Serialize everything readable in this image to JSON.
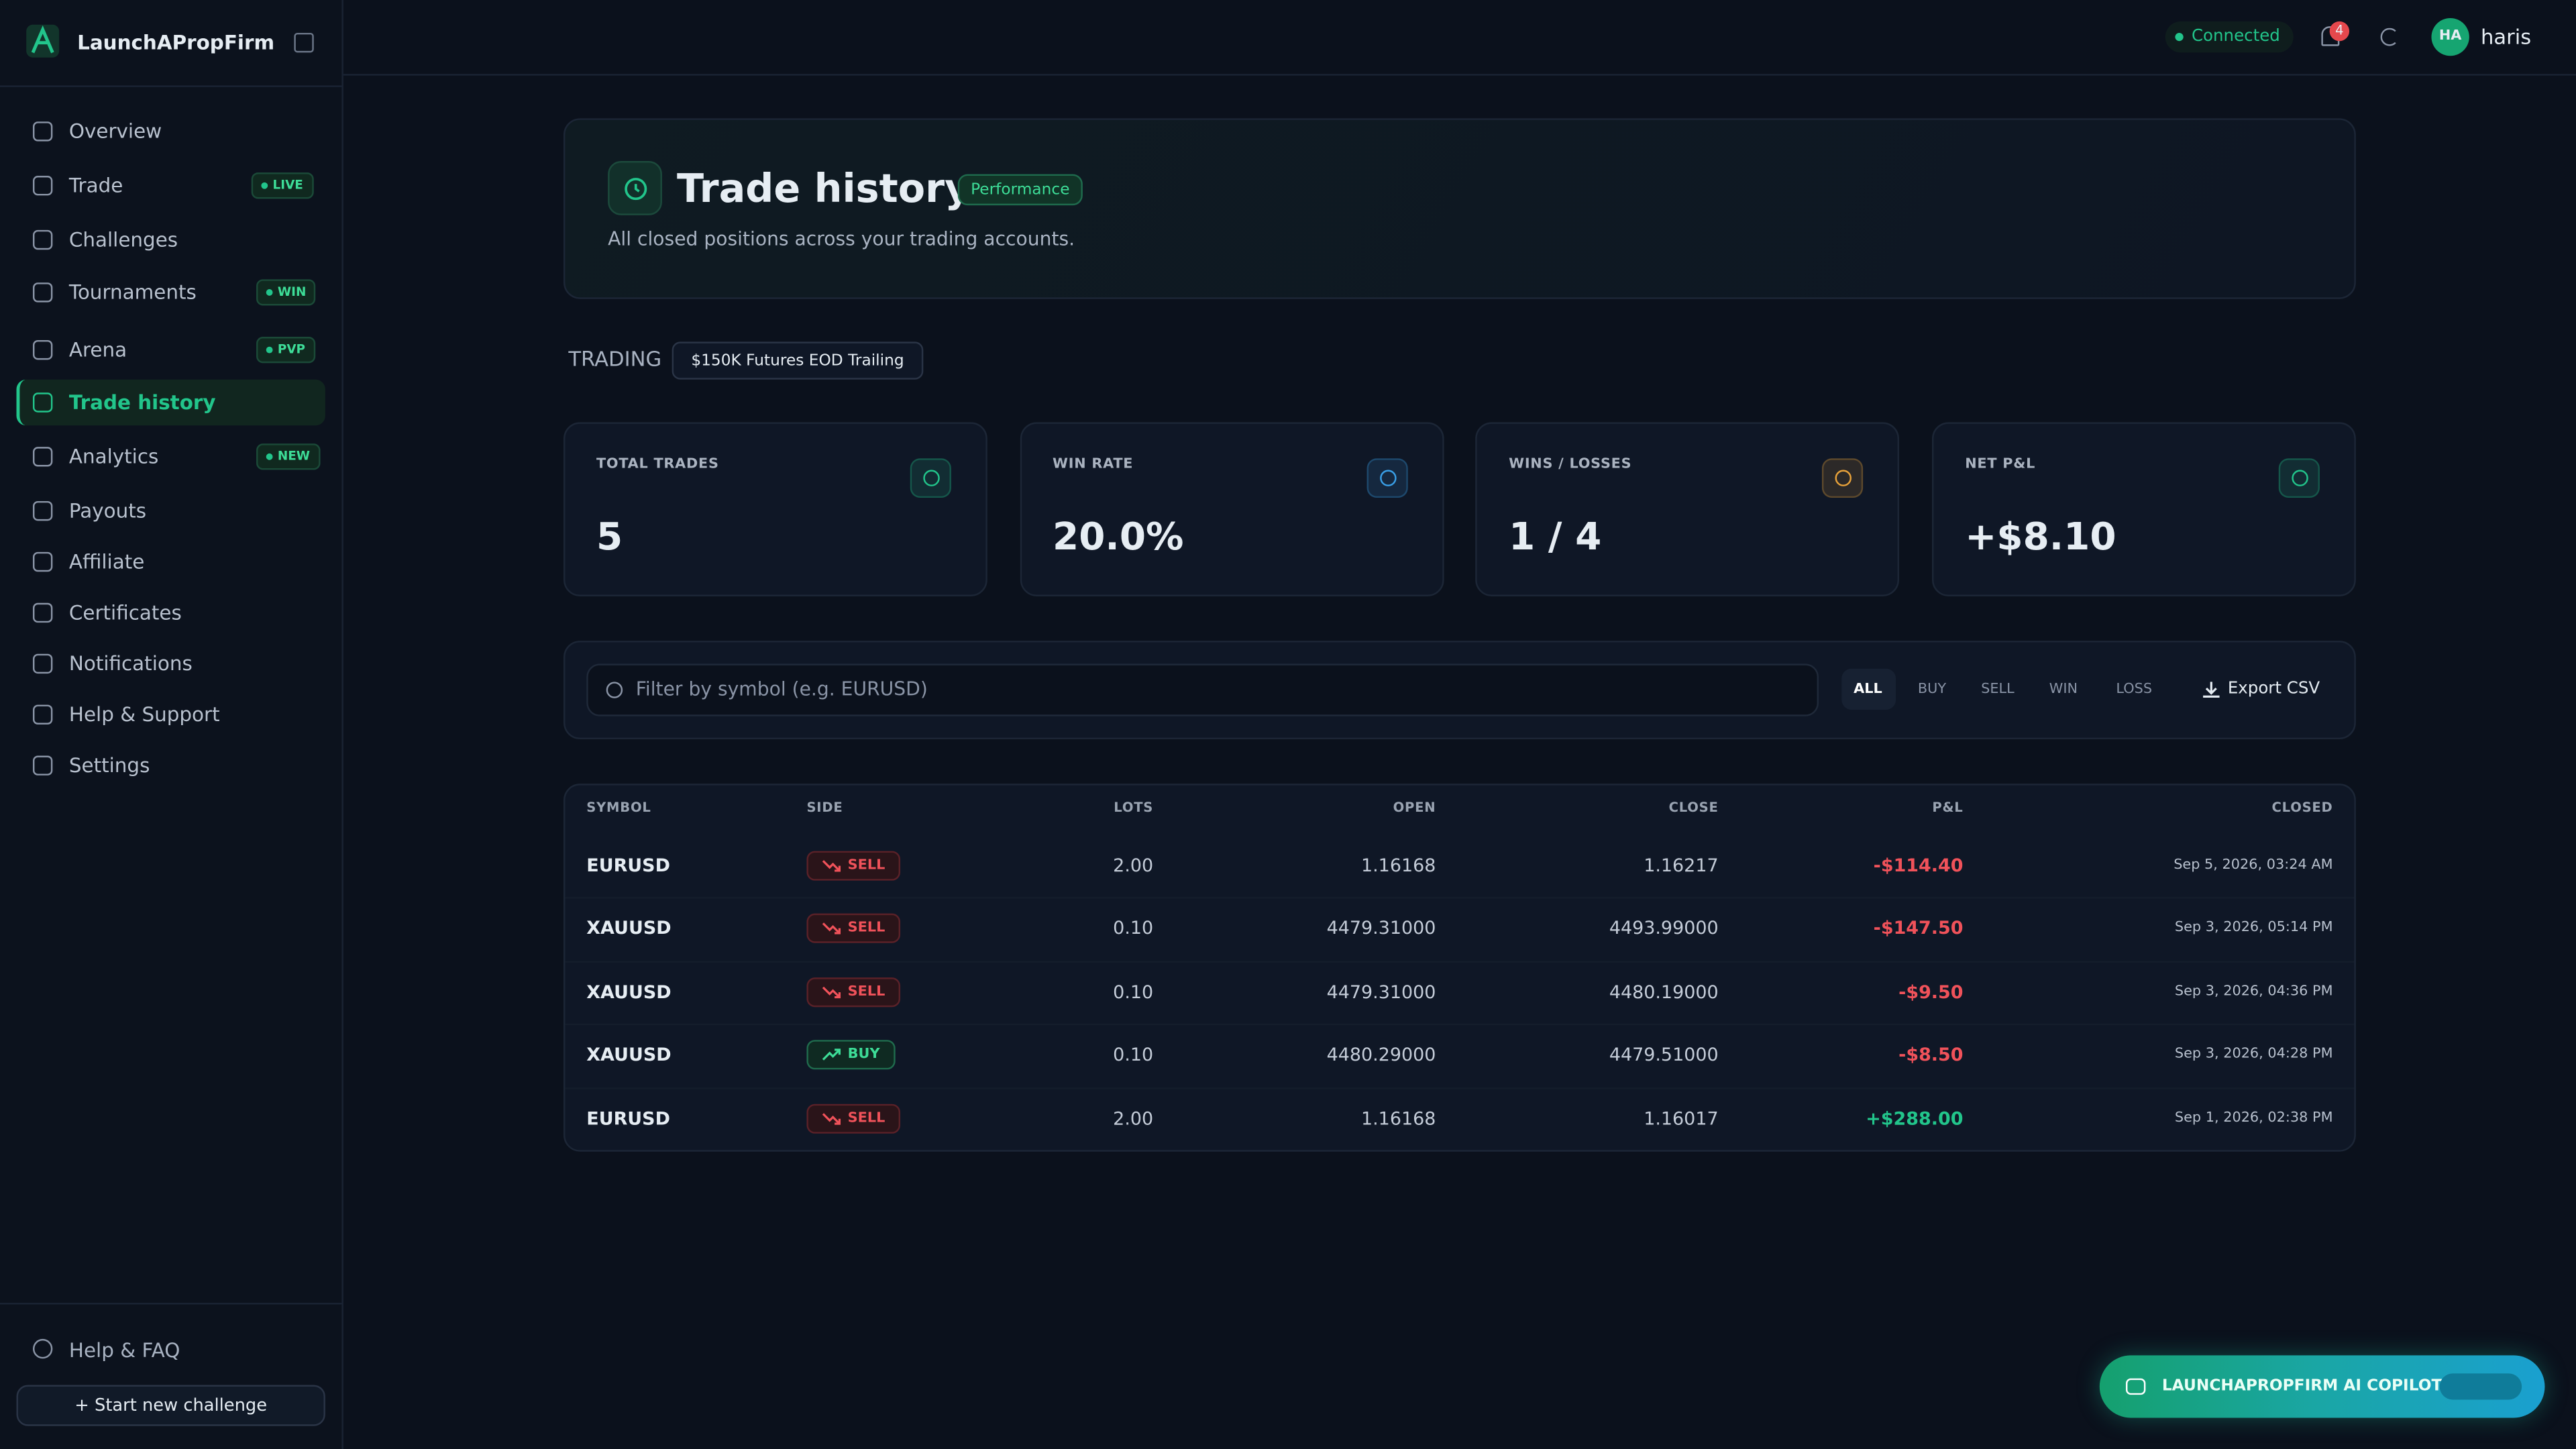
{
  "sidebar": {
    "brand": "LaunchAPropFirm",
    "nav": [
      {
        "label": "Overview"
      },
      {
        "label": "Trade",
        "badge": "LIVE"
      },
      {
        "label": "Challenges"
      },
      {
        "label": "Tournaments",
        "badge": "WIN"
      },
      {
        "label": "Arena",
        "badge": "PVP"
      },
      {
        "label": "Trade history",
        "active": true
      },
      {
        "label": "Analytics",
        "badge": "NEW"
      },
      {
        "label": "Payouts"
      },
      {
        "label": "Affiliate"
      },
      {
        "label": "Certificates"
      },
      {
        "label": "Notifications"
      },
      {
        "label": "Help & Support"
      },
      {
        "label": "Settings"
      }
    ],
    "help": "Help & FAQ",
    "new_challenge": "+ Start new challenge"
  },
  "topbar": {
    "status": "Connected",
    "notifications": "4",
    "avatar": "HA",
    "user": "haris"
  },
  "header": {
    "title": "Trade history",
    "badge": "Performance",
    "subtitle": "All closed positions across your trading accounts."
  },
  "account": {
    "label": "TRADING",
    "name": "$150K Futures EOD Trailing"
  },
  "stats": [
    {
      "label": "TOTAL TRADES",
      "value": "5",
      "color": "#22c58b"
    },
    {
      "label": "WIN RATE",
      "value": "20.0%",
      "color": "#3aa0e8"
    },
    {
      "label": "WINS / LOSSES",
      "value": "1 / 4",
      "color": "#e8a23a"
    },
    {
      "label": "NET P&L",
      "value": "+$8.10",
      "color": "#22c58b"
    }
  ],
  "filters": {
    "placeholder": "Filter by symbol (e.g. EURUSD)",
    "options": [
      "ALL",
      "BUY",
      "SELL",
      "WIN",
      "LOSS"
    ],
    "selected": "ALL",
    "export": "Export CSV"
  },
  "table": {
    "columns": [
      "SYMBOL",
      "SIDE",
      "LOTS",
      "OPEN",
      "CLOSE",
      "P&L",
      "CLOSED"
    ],
    "rows": [
      [
        "EURUSD",
        "SELL",
        "2.00",
        "1.16168",
        "1.16217",
        "-$114.40",
        "Sep 5, 2026, 03:24 AM"
      ],
      [
        "XAUUSD",
        "SELL",
        "0.10",
        "4479.31000",
        "4493.99000",
        "-$147.50",
        "Sep 3, 2026, 05:14 PM"
      ],
      [
        "XAUUSD",
        "SELL",
        "0.10",
        "4479.31000",
        "4480.19000",
        "-$9.50",
        "Sep 3, 2026, 04:36 PM"
      ],
      [
        "XAUUSD",
        "BUY",
        "0.10",
        "4480.29000",
        "4479.51000",
        "-$8.50",
        "Sep 3, 2026, 04:28 PM"
      ],
      [
        "EURUSD",
        "SELL",
        "2.00",
        "1.16168",
        "1.16017",
        "+$288.00",
        "Sep 1, 2026, 02:38 PM"
      ]
    ]
  },
  "copilot": "LAUNCHAPROPFIRM AI COPILOT"
}
